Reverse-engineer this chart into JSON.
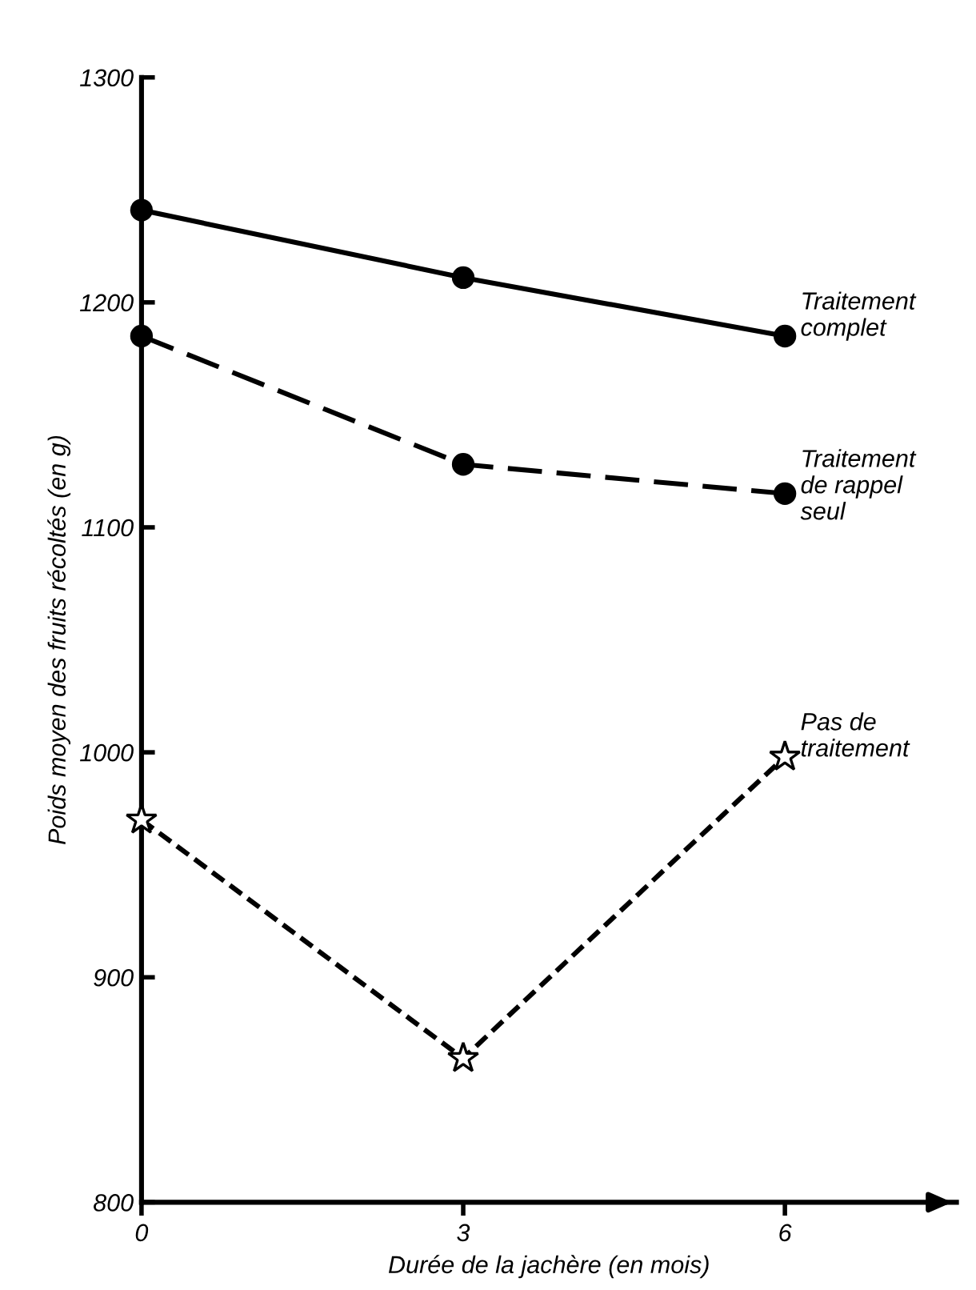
{
  "chart_data": {
    "type": "line",
    "xlabel": "Durée de la jachère (en mois)",
    "ylabel": "Poids moyen des fruits récoltés (en g)",
    "x": [
      0,
      3,
      6
    ],
    "xlim": [
      0,
      7.6
    ],
    "xticks": [
      0,
      3,
      6
    ],
    "ylim": [
      800,
      1300
    ],
    "yticks": [
      800,
      900,
      1000,
      1100,
      1200,
      1300
    ],
    "grid": false,
    "legend": false,
    "series": [
      {
        "name": "Traitement\ncomplet",
        "color": "#000000",
        "marker": "circle",
        "line_style": "solid",
        "values": [
          1241,
          1211,
          1185
        ]
      },
      {
        "name": "Traitement\nde rappel\nseul",
        "color": "#000000",
        "marker": "circle",
        "line_style": "longdash",
        "values": [
          1185,
          1128,
          1115
        ]
      },
      {
        "name": "Pas de\ntraitement",
        "color": "#000000",
        "marker": "star",
        "line_style": "dashed",
        "values": [
          970,
          864,
          998
        ]
      }
    ]
  }
}
